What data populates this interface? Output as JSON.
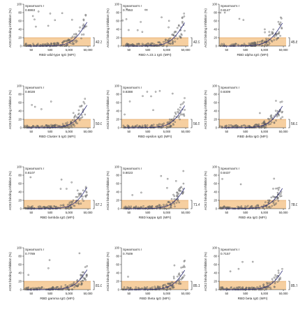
{
  "ylabel": "ACE2 binding inhibition (%)",
  "stat_label": "Spearman's r",
  "x_ticks": [
    "50",
    "500",
    "5,000",
    "50,000"
  ],
  "y_ticks": [
    "0",
    "20",
    "40",
    "60",
    "80",
    "100"
  ],
  "threshold_percent": 20,
  "colors": {
    "band": "#f6cfa0",
    "threshold_line": "#d9893a",
    "points": "#555555",
    "fit": "#2e2e78"
  },
  "chart_data": [
    {
      "type": "scatter",
      "xlabel": "RBD wild-type IgG (MFI)",
      "r": "0.8863",
      "below_threshold": "42.3 %",
      "x_scale": "log",
      "xlim": [
        20,
        70000
      ],
      "ylim": [
        0,
        100
      ]
    },
    {
      "type": "scatter",
      "xlabel": "RBD A.23.1 IgG (MFI)",
      "r": "0.7853",
      "below_threshold": "42.9 %",
      "x_scale": "log",
      "xlim": [
        20,
        70000
      ],
      "ylim": [
        0,
        100
      ]
    },
    {
      "type": "scatter",
      "xlabel": "RBD alpha IgG (MFI)",
      "r": "0.8147",
      "below_threshold": "45.8 %",
      "x_scale": "log",
      "xlim": [
        20,
        70000
      ],
      "ylim": [
        0,
        100
      ]
    },
    {
      "type": "scatter",
      "xlabel": "RBD Cluster 5 IgG (MFI)",
      "r": "0.8028",
      "below_threshold": "50.0 %",
      "x_scale": "log",
      "xlim": [
        20,
        70000
      ],
      "ylim": [
        0,
        100
      ]
    },
    {
      "type": "scatter",
      "xlabel": "RBD epsilon IgG (MFI)",
      "r": "0.8388",
      "below_threshold": "56.5 %",
      "x_scale": "log",
      "xlim": [
        20,
        70000
      ],
      "ylim": [
        0,
        100
      ]
    },
    {
      "type": "scatter",
      "xlabel": "RBD delta IgG (MFI)",
      "r": "0.8309",
      "below_threshold": "56.9 %",
      "x_scale": "log",
      "xlim": [
        20,
        70000
      ],
      "ylim": [
        0,
        100
      ]
    },
    {
      "type": "scatter",
      "xlabel": "RBD lambda IgG (MFI)",
      "r": "0.8107",
      "below_threshold": "67.3 %",
      "x_scale": "log",
      "xlim": [
        20,
        70000
      ],
      "ylim": [
        0,
        100
      ]
    },
    {
      "type": "scatter",
      "xlabel": "RBD kappa IgG (MFI)",
      "r": "0.8023",
      "below_threshold": "71.4 %",
      "x_scale": "log",
      "xlim": [
        20,
        70000
      ],
      "ylim": [
        0,
        100
      ]
    },
    {
      "type": "scatter",
      "xlabel": "RBD eta IgG (MFI)",
      "r": "0.8437",
      "below_threshold": "78.0 %",
      "x_scale": "log",
      "xlim": [
        20,
        70000
      ],
      "ylim": [
        0,
        100
      ]
    },
    {
      "type": "scatter",
      "xlabel": "RBD gamma IgG (MFI)",
      "r": "0.7789",
      "below_threshold": "81.0 %",
      "x_scale": "log",
      "xlim": [
        20,
        70000
      ],
      "ylim": [
        0,
        100
      ]
    },
    {
      "type": "scatter",
      "xlabel": "RBD theta IgG (MFI)",
      "r": "0.7509",
      "below_threshold": "85.1 %",
      "x_scale": "log",
      "xlim": [
        20,
        70000
      ],
      "ylim": [
        0,
        100
      ]
    },
    {
      "type": "scatter",
      "xlabel": "RBD beta IgG (MFI)",
      "r": "0.7157",
      "below_threshold": "85.7 %",
      "x_scale": "log",
      "xlim": [
        20,
        70000
      ],
      "ylim": [
        0,
        100
      ]
    }
  ]
}
